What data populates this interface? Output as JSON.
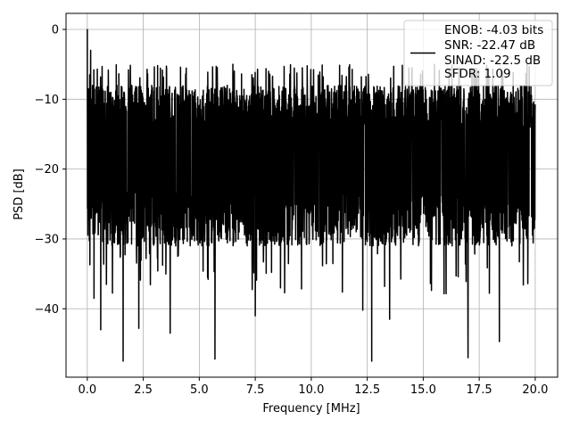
{
  "chart_data": {
    "type": "line",
    "title": "",
    "xlabel": "Frequency [MHz]",
    "ylabel": "PSD [dB]",
    "xlim": [
      -0.95,
      21.0
    ],
    "ylim": [
      -49.8,
      2.3
    ],
    "xticks": [
      0.0,
      2.5,
      5.0,
      7.5,
      10.0,
      12.5,
      15.0,
      17.5,
      20.0
    ],
    "xtick_labels": [
      "0.0",
      "2.5",
      "5.0",
      "7.5",
      "10.0",
      "12.5",
      "15.0",
      "17.5",
      "20.0"
    ],
    "yticks": [
      0,
      -10,
      -20,
      -30,
      -40
    ],
    "ytick_labels": [
      "0",
      "−10",
      "−20",
      "−30",
      "−40"
    ],
    "grid": true,
    "legend": {
      "placement": "top-right",
      "entries": [
        "ENOB: -4.03 bits",
        "SNR: -22.47 dB",
        "SINAD: -22.5 dB",
        "SFDR: 1.09"
      ]
    },
    "series": [
      {
        "color": "#000000",
        "description": "dense noise-like power spectral density",
        "x_range": [
          0.0,
          20.0
        ],
        "typical_upper_envelope": -8,
        "typical_lower_envelope": -28,
        "landmarks": [
          {
            "x": 0.0,
            "y": 0.0
          },
          {
            "x": 0.05,
            "y": -8.5
          },
          {
            "x": 0.15,
            "y": -3.0
          },
          {
            "x": 0.3,
            "y": -38.5
          },
          {
            "x": 0.6,
            "y": -43.0
          },
          {
            "x": 1.6,
            "y": -47.5
          },
          {
            "x": 2.3,
            "y": -42.8
          },
          {
            "x": 3.7,
            "y": -43.5
          },
          {
            "x": 5.7,
            "y": -47.2
          },
          {
            "x": 7.5,
            "y": -41.0
          },
          {
            "x": 12.3,
            "y": -40.2
          },
          {
            "x": 12.7,
            "y": -47.5
          },
          {
            "x": 13.5,
            "y": -41.5
          },
          {
            "x": 17.0,
            "y": -47.0
          },
          {
            "x": 18.4,
            "y": -44.7
          },
          {
            "x": 6.5,
            "y": -5.0
          },
          {
            "x": 9.6,
            "y": -5.5
          },
          {
            "x": 14.5,
            "y": -5.5
          },
          {
            "x": 15.5,
            "y": -5.0
          },
          {
            "x": 18.5,
            "y": -6.0
          }
        ]
      }
    ]
  }
}
